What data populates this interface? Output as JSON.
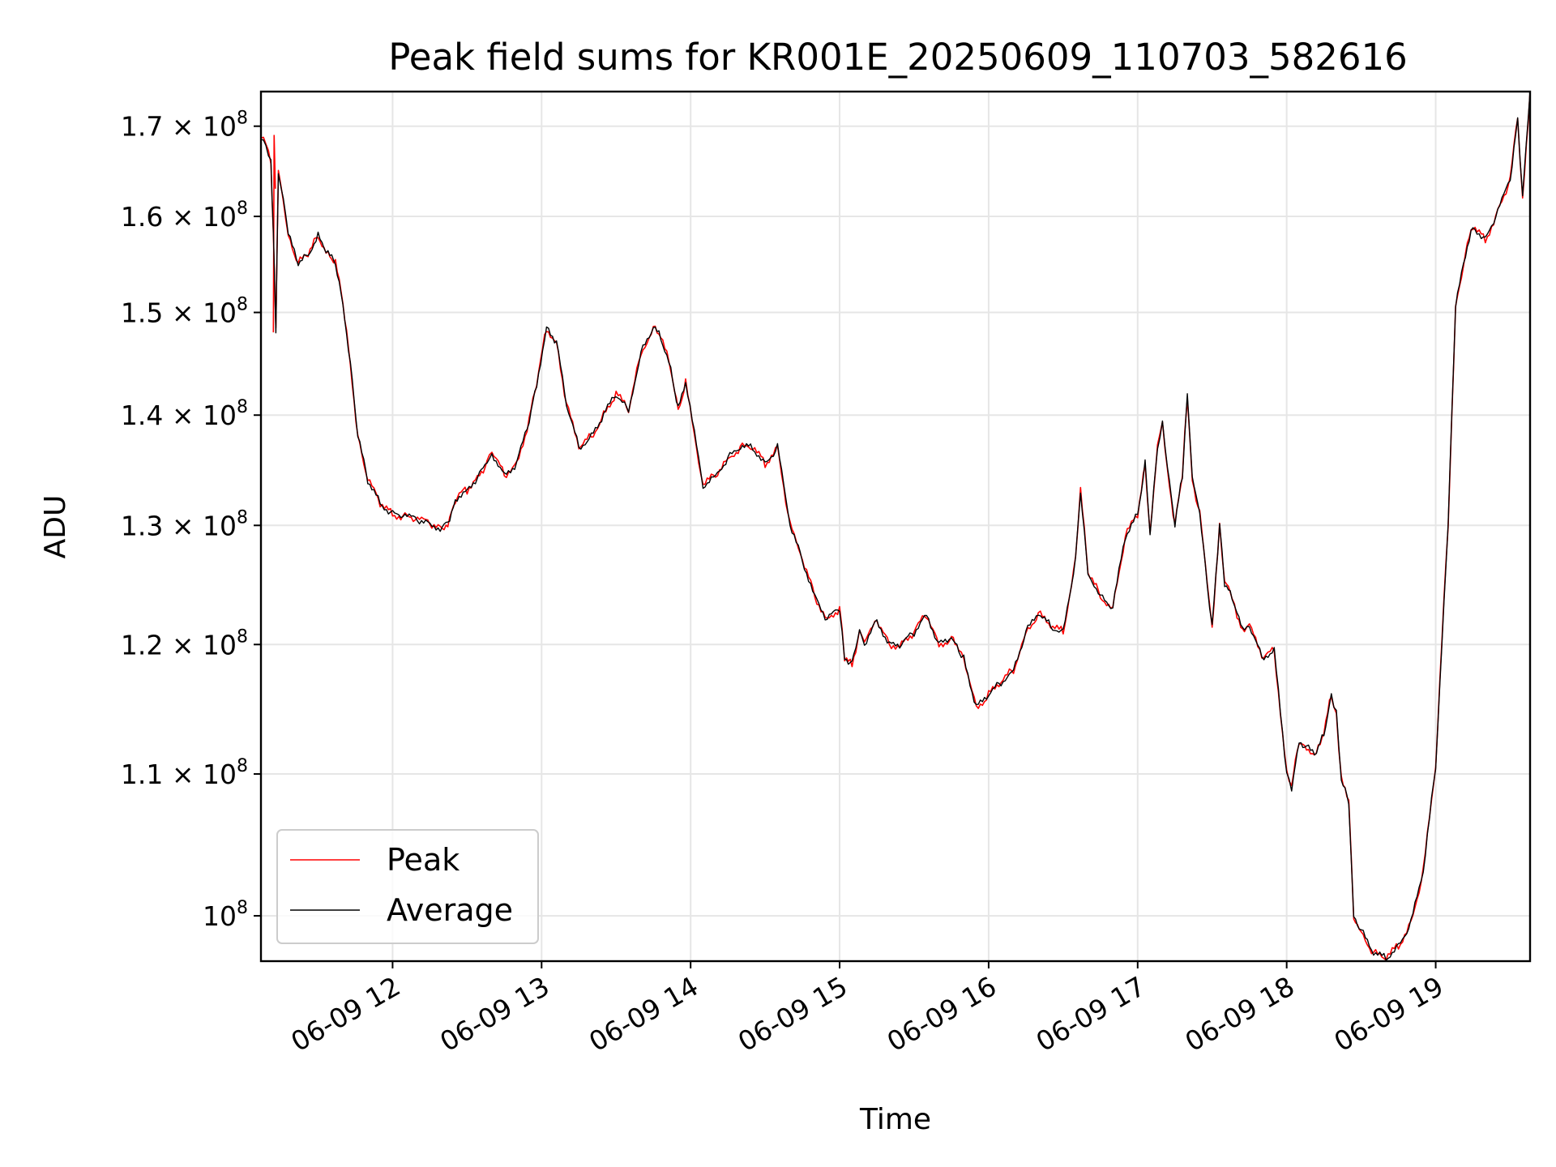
{
  "chart_data": {
    "type": "line",
    "title": "Peak field sums for KR001E_20250609_110703_582616",
    "xlabel": "Time",
    "ylabel": "ADU",
    "yscale": "log",
    "xlim": [
      "2025-06-09 11:07",
      "2025-06-09 19:38"
    ],
    "ylim": [
      97000000,
      174000000
    ],
    "x_tick_labels": [
      "06-09 12",
      "06-09 13",
      "06-09 14",
      "06-09 15",
      "06-09 16",
      "06-09 17",
      "06-09 18",
      "06-09 19"
    ],
    "y_ticks": [
      {
        "value": 100000000,
        "mantissa": "",
        "base": "10",
        "exp": "8"
      },
      {
        "value": 110000000,
        "mantissa": "1.1",
        "base": "10",
        "exp": "8"
      },
      {
        "value": 120000000,
        "mantissa": "1.2",
        "base": "10",
        "exp": "8"
      },
      {
        "value": 130000000,
        "mantissa": "1.3",
        "base": "10",
        "exp": "8"
      },
      {
        "value": 140000000,
        "mantissa": "1.4",
        "base": "10",
        "exp": "8"
      },
      {
        "value": 150000000,
        "mantissa": "1.5",
        "base": "10",
        "exp": "8"
      },
      {
        "value": 160000000,
        "mantissa": "1.6",
        "base": "10",
        "exp": "8"
      },
      {
        "value": 170000000,
        "mantissa": "1.7",
        "base": "10",
        "exp": "8"
      }
    ],
    "grid": true,
    "legend_position": "lower-left",
    "series": [
      {
        "name": "Peak",
        "color": "#ff0000"
      },
      {
        "name": "Average",
        "color": "#000000"
      }
    ],
    "x": [
      "11:07",
      "11:09",
      "11:11",
      "11:12",
      "11:13",
      "11:14",
      "11:16",
      "11:18",
      "11:22",
      "11:26",
      "11:30",
      "11:34",
      "11:37",
      "11:40",
      "11:43",
      "11:46",
      "11:50",
      "11:55",
      "12:00",
      "12:05",
      "12:10",
      "12:15",
      "12:20",
      "12:23",
      "12:26",
      "12:30",
      "12:35",
      "12:38",
      "12:40",
      "12:45",
      "12:50",
      "12:55",
      "12:58",
      "13:02",
      "13:06",
      "13:10",
      "13:15",
      "13:20",
      "13:25",
      "13:30",
      "13:35",
      "13:40",
      "13:45",
      "13:48",
      "13:52",
      "13:55",
      "13:58",
      "14:05",
      "14:10",
      "14:15",
      "14:20",
      "14:25",
      "14:30",
      "14:35",
      "14:40",
      "14:45",
      "14:50",
      "14:55",
      "15:00",
      "15:02",
      "15:05",
      "15:08",
      "15:10",
      "15:15",
      "15:20",
      "15:25",
      "15:30",
      "15:35",
      "15:40",
      "15:45",
      "15:48",
      "15:50",
      "15:55",
      "16:00",
      "16:05",
      "16:10",
      "16:15",
      "16:20",
      "16:25",
      "16:30",
      "16:35",
      "16:37",
      "16:40",
      "16:45",
      "16:50",
      "16:55",
      "17:00",
      "17:03",
      "17:05",
      "17:08",
      "17:10",
      "17:12",
      "17:15",
      "17:18",
      "17:20",
      "17:22",
      "17:25",
      "17:28",
      "17:30",
      "17:33",
      "17:35",
      "17:38",
      "17:40",
      "17:43",
      "17:45",
      "17:50",
      "17:55",
      "18:00",
      "18:02",
      "18:05",
      "18:08",
      "18:12",
      "18:15",
      "18:18",
      "18:20",
      "18:22",
      "18:25",
      "18:27",
      "18:30",
      "18:35",
      "18:40",
      "18:45",
      "18:50",
      "18:55",
      "19:00",
      "19:05",
      "19:08",
      "19:12",
      "19:15",
      "19:20",
      "19:25",
      "19:30",
      "19:33",
      "19:35",
      "19:38"
    ],
    "peak": [
      168.5,
      168,
      166,
      158,
      148,
      165,
      162,
      158,
      155,
      156,
      158,
      156,
      155,
      151,
      145,
      138,
      134,
      132,
      131,
      130.8,
      130.5,
      130.2,
      129.7,
      130.5,
      132.5,
      133.2,
      134.5,
      135.5,
      136.5,
      134.5,
      135.5,
      139.5,
      143,
      148.5,
      147,
      141,
      137,
      138,
      140,
      142,
      140.5,
      146,
      148.5,
      147.5,
      144.5,
      140.5,
      143,
      133.5,
      134.5,
      136,
      137,
      137,
      135.5,
      137,
      130,
      127,
      124,
      122,
      123,
      119,
      118.5,
      121,
      120,
      122,
      120,
      120,
      121,
      122.5,
      120,
      120.5,
      119.5,
      119,
      115,
      116,
      117,
      118,
      121,
      122.5,
      121.5,
      121,
      127,
      133,
      126,
      124,
      123,
      129,
      131,
      135.5,
      129,
      137,
      139.5,
      135,
      130,
      134.5,
      142,
      134,
      131,
      125,
      121.5,
      130,
      125,
      124,
      122.5,
      121,
      121.5,
      119,
      119.5,
      110,
      109,
      112.5,
      112,
      111.5,
      113,
      116,
      114.5,
      109.5,
      108,
      100,
      99,
      97.5,
      97.2,
      98,
      99.5,
      103,
      110.5,
      130,
      150.5,
      156,
      159,
      157.5,
      160.5,
      164,
      171,
      162,
      174
    ]
  }
}
